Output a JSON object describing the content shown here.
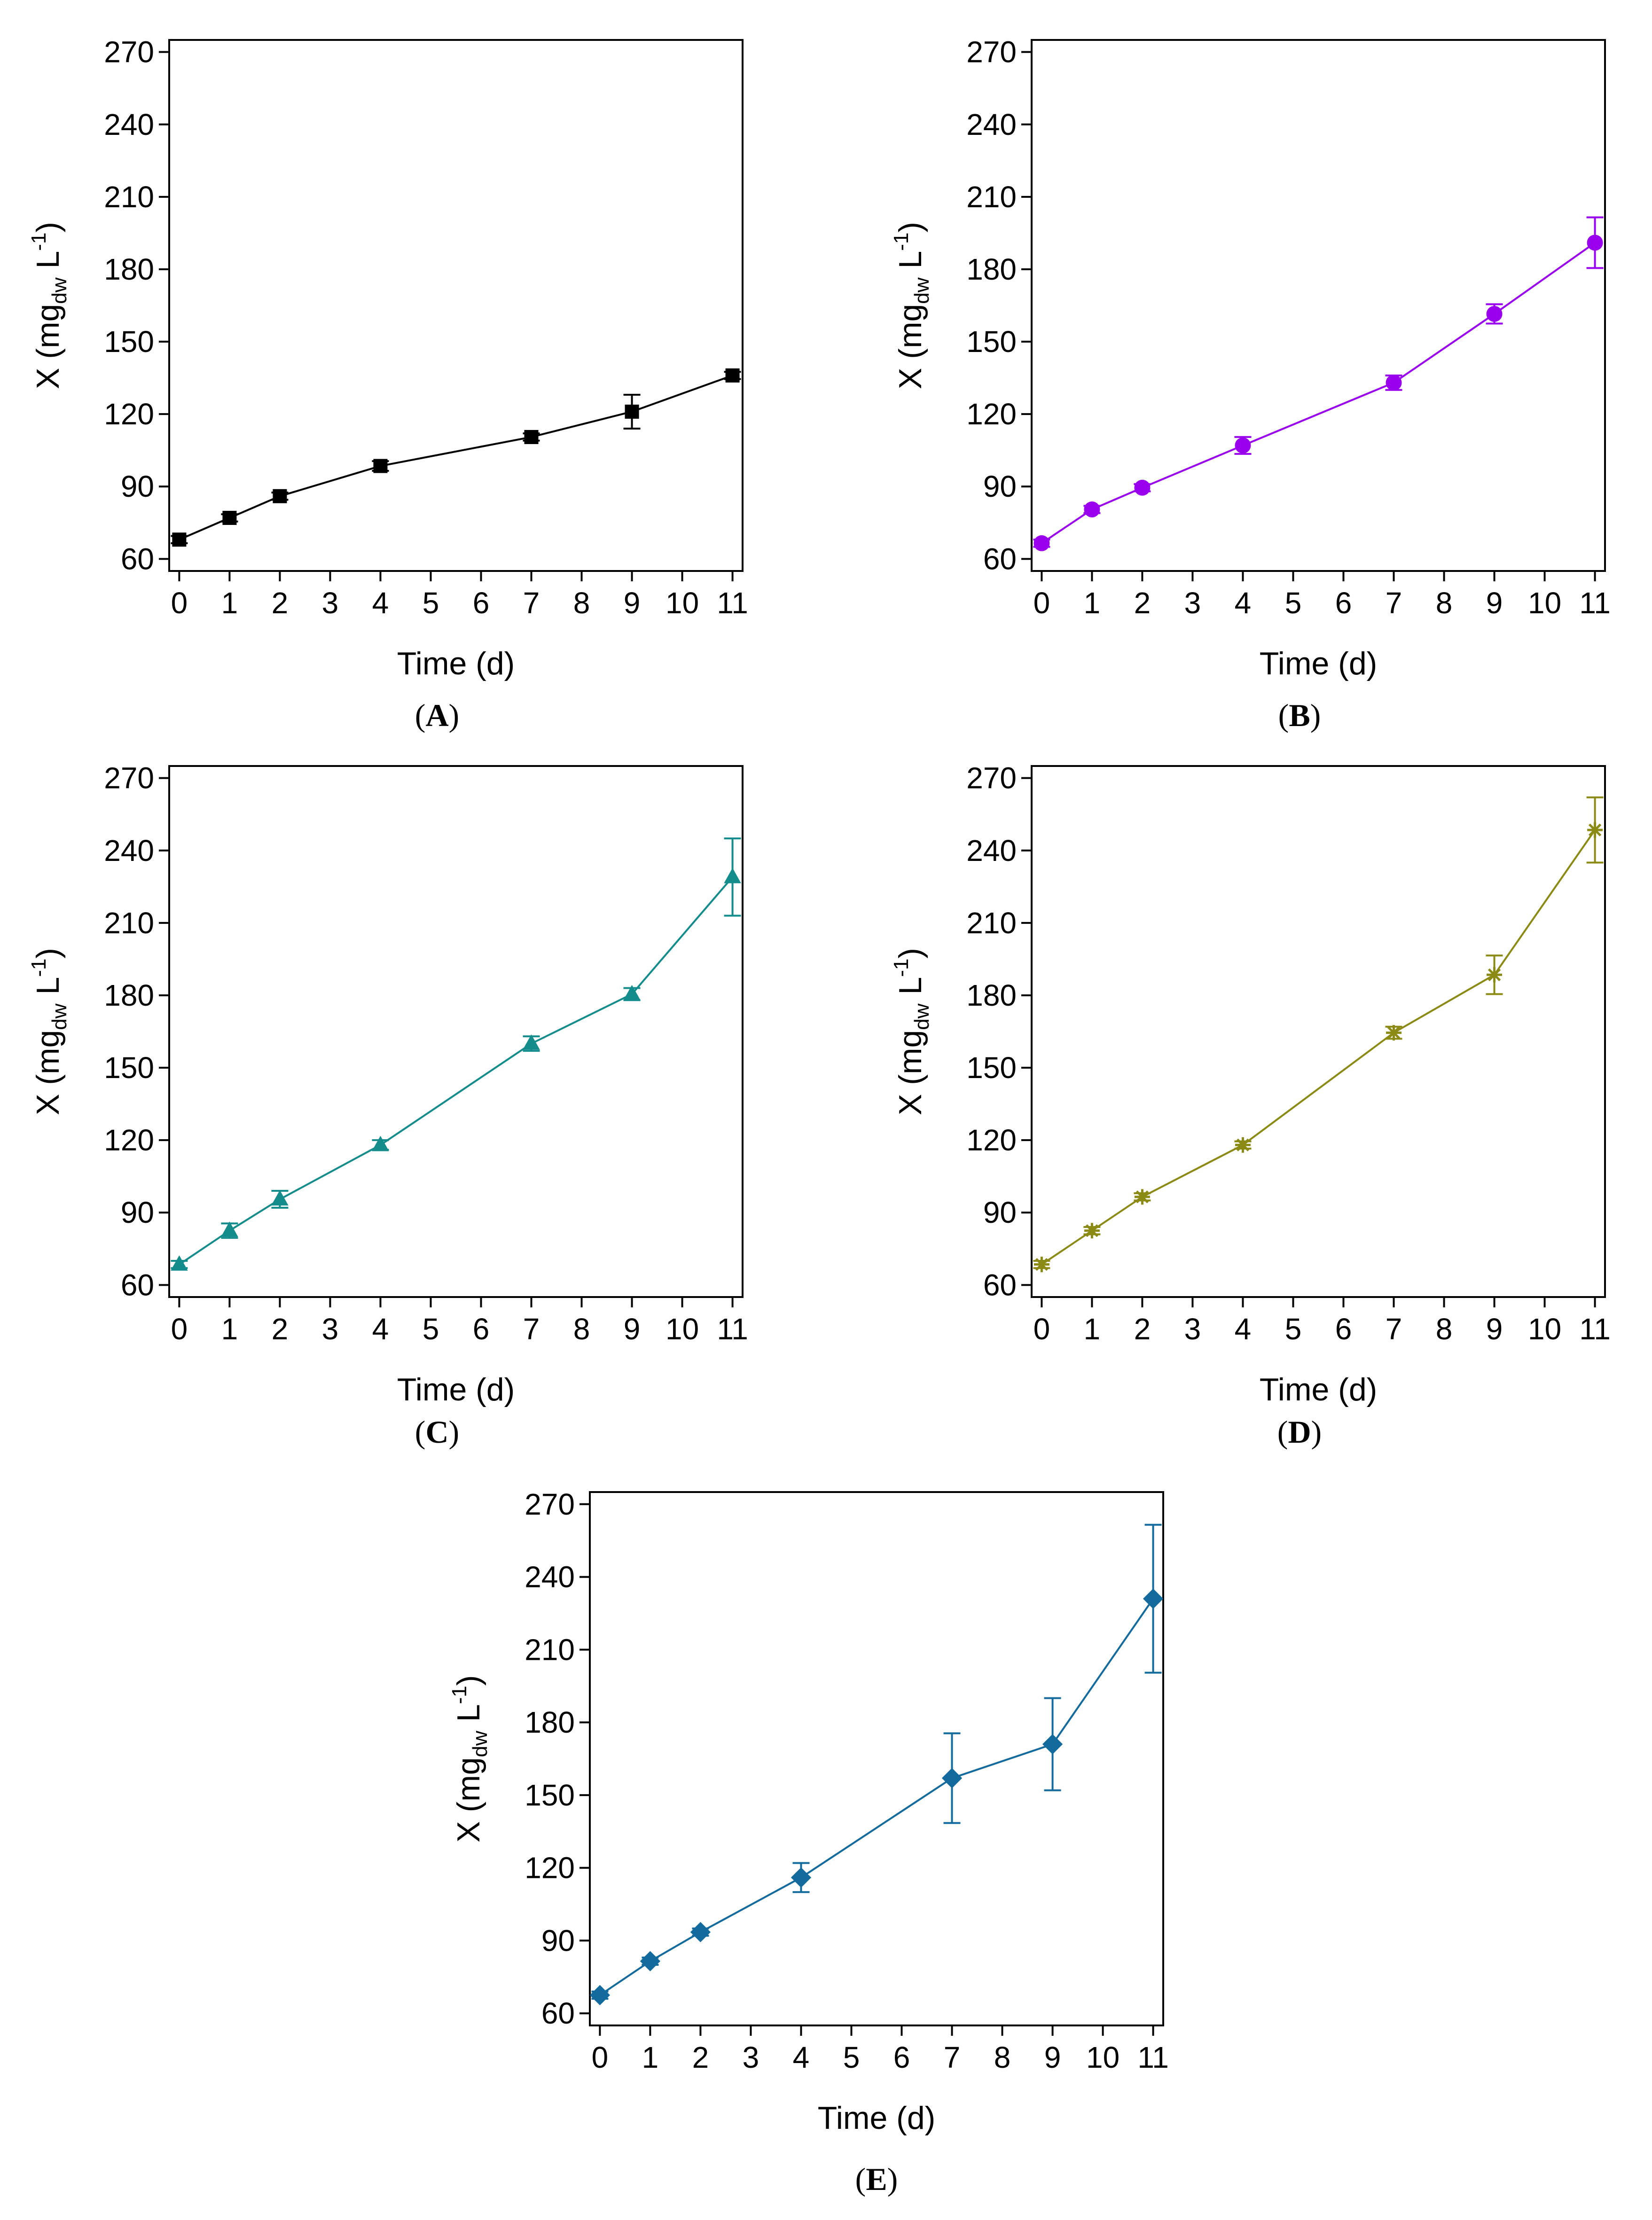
{
  "chart_data": [
    {
      "panel": "A",
      "type": "line",
      "color": "#000000",
      "marker": "square",
      "x": [
        0,
        1,
        2,
        4,
        7,
        9,
        11
      ],
      "y": [
        68,
        77,
        86,
        98.5,
        110.5,
        121,
        136
      ],
      "error": [
        1.5,
        1.5,
        1.5,
        2,
        1.5,
        7,
        1.5
      ],
      "xlabel": "Time (d)",
      "ylabel": {
        "prefix": "X (mg",
        "sub": "dw",
        "middle": " L",
        "sup": "-1",
        "suffix": ")"
      },
      "xticks": [
        "0",
        "1",
        "2",
        "3",
        "4",
        "5",
        "6",
        "7",
        "8",
        "9",
        "10",
        "11"
      ],
      "yticks": [
        "60",
        "90",
        "120",
        "150",
        "180",
        "210",
        "240",
        "270"
      ],
      "xlim": [
        -0.2,
        11.2
      ],
      "ylim": [
        55,
        275
      ]
    },
    {
      "panel": "B",
      "type": "line",
      "color": "#9900EE",
      "marker": "circle",
      "x": [
        0,
        1,
        2,
        4,
        7,
        9,
        11
      ],
      "y": [
        66.5,
        80.5,
        89.5,
        107,
        133,
        161.5,
        191
      ],
      "error": [
        1.5,
        1.5,
        1.5,
        3.5,
        3,
        4,
        10.5
      ],
      "xlabel": "Time (d)",
      "ylabel": {
        "prefix": "X (mg",
        "sub": "dw",
        "middle": " L",
        "sup": "-1",
        "suffix": ")"
      },
      "xticks": [
        "0",
        "1",
        "2",
        "3",
        "4",
        "5",
        "6",
        "7",
        "8",
        "9",
        "10",
        "11"
      ],
      "yticks": [
        "60",
        "90",
        "120",
        "150",
        "180",
        "210",
        "240",
        "270"
      ],
      "xlim": [
        -0.2,
        11.2
      ],
      "ylim": [
        55,
        275
      ]
    },
    {
      "panel": "C",
      "type": "line",
      "color": "#158C8C",
      "marker": "triangle",
      "x": [
        0,
        1,
        2,
        4,
        7,
        9,
        11
      ],
      "y": [
        68.5,
        82.5,
        95.5,
        118,
        160,
        180.5,
        229
      ],
      "error": [
        1.5,
        3,
        3.5,
        2,
        3,
        2.5,
        16
      ],
      "xlabel": "Time (d)",
      "ylabel": {
        "prefix": "X (mg",
        "sub": "dw",
        "middle": " L",
        "sup": "-1",
        "suffix": ")"
      },
      "xticks": [
        "0",
        "1",
        "2",
        "3",
        "4",
        "5",
        "6",
        "7",
        "8",
        "9",
        "10",
        "11"
      ],
      "yticks": [
        "60",
        "90",
        "120",
        "150",
        "180",
        "210",
        "240",
        "270"
      ],
      "xlim": [
        -0.2,
        11.2
      ],
      "ylim": [
        55,
        275
      ]
    },
    {
      "panel": "D",
      "type": "line",
      "color": "#8A8A14",
      "marker": "star",
      "x": [
        0,
        1,
        2,
        4,
        7,
        9,
        11
      ],
      "y": [
        68.5,
        82.5,
        96.5,
        118,
        164.5,
        188.5,
        248.5
      ],
      "error": [
        1.5,
        1.5,
        1.5,
        1.5,
        2.5,
        8,
        13.5
      ],
      "xlabel": "Time (d)",
      "ylabel": {
        "prefix": "X (mg",
        "sub": "dw",
        "middle": " L",
        "sup": "-1",
        "suffix": ")"
      },
      "xticks": [
        "0",
        "1",
        "2",
        "3",
        "4",
        "5",
        "6",
        "7",
        "8",
        "9",
        "10",
        "11"
      ],
      "yticks": [
        "60",
        "90",
        "120",
        "150",
        "180",
        "210",
        "240",
        "270"
      ],
      "xlim": [
        -0.2,
        11.2
      ],
      "ylim": [
        55,
        275
      ]
    },
    {
      "panel": "E",
      "type": "line",
      "color": "#136A9C",
      "marker": "diamond",
      "x": [
        0,
        1,
        2,
        4,
        7,
        9,
        11
      ],
      "y": [
        67.5,
        81.5,
        93.5,
        116,
        157,
        171,
        231
      ],
      "error": [
        1.5,
        1.5,
        1.5,
        6,
        18.5,
        19,
        30.5
      ],
      "xlabel": "Time (d)",
      "ylabel": {
        "prefix": "X (mg",
        "sub": "dw",
        "middle": " L",
        "sup": "-1",
        "suffix": ")"
      },
      "xticks": [
        "0",
        "1",
        "2",
        "3",
        "4",
        "5",
        "6",
        "7",
        "8",
        "9",
        "10",
        "11"
      ],
      "yticks": [
        "60",
        "90",
        "120",
        "150",
        "180",
        "210",
        "240",
        "270"
      ],
      "xlim": [
        -0.2,
        11.2
      ],
      "ylim": [
        55,
        275
      ]
    }
  ]
}
